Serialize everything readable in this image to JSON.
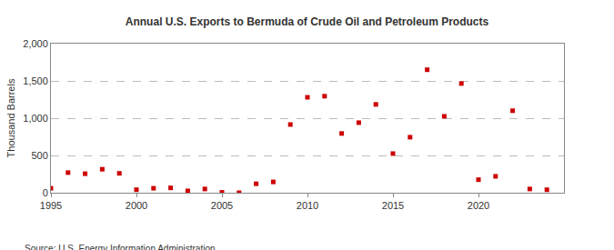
{
  "chart_data": {
    "type": "scatter",
    "title": "Annual U.S. Exports to Bermuda of Crude Oil and Petroleum Products",
    "y_label": "Thousand Barrels",
    "source": "Source: U.S. Energy Information Administration",
    "x": [
      1995,
      1996,
      1997,
      1998,
      1999,
      2000,
      2001,
      2002,
      2003,
      2004,
      2005,
      2006,
      2007,
      2008,
      2009,
      2010,
      2011,
      2012,
      2013,
      2014,
      2015,
      2016,
      2017,
      2018,
      2019,
      2020,
      2021,
      2022,
      2023,
      2024
    ],
    "values": [
      60,
      270,
      255,
      315,
      260,
      40,
      60,
      65,
      25,
      50,
      5,
      0,
      120,
      145,
      915,
      1280,
      1295,
      795,
      940,
      1185,
      525,
      745,
      1650,
      1025,
      1465,
      175,
      220,
      1100,
      50,
      40
    ],
    "color": "#cc0000",
    "marker": "square",
    "xlim": [
      1995,
      2025
    ],
    "xticks": [
      1995,
      2000,
      2005,
      2010,
      2015,
      2020
    ],
    "ylim": [
      0,
      2000
    ],
    "yticks": [
      0,
      500,
      {
        "value": 1000,
        "label": "1,000"
      },
      {
        "value": 1500,
        "label": "1,500"
      },
      {
        "value": 2000,
        "label": "2,000"
      }
    ],
    "grid": true
  }
}
